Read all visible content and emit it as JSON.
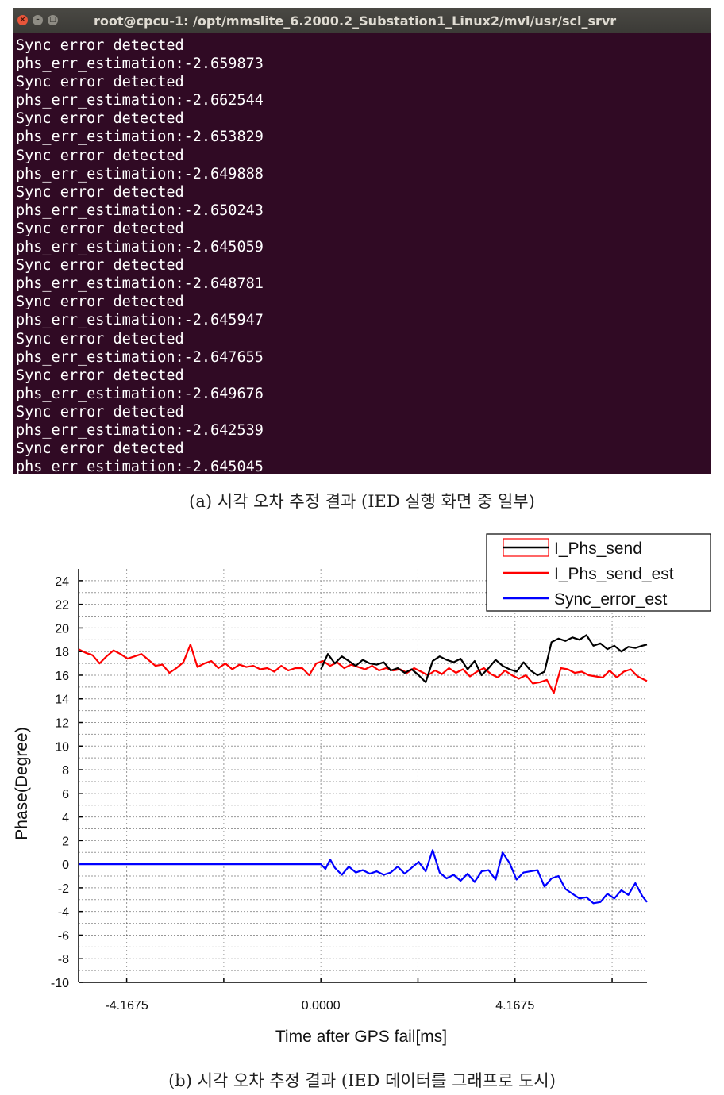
{
  "terminal": {
    "title": "root@cpcu-1: /opt/mmslite_6.2000.2_Substation1_Linux2/mvl/usr/scl_srvr",
    "buttons": {
      "close": "×",
      "minimize": "–",
      "maximize": "□"
    },
    "lines": [
      "Sync error detected",
      "phs_err_estimation:-2.659873",
      "Sync error detected",
      "phs_err_estimation:-2.662544",
      "Sync error detected",
      "phs_err_estimation:-2.653829",
      "Sync error detected",
      "phs_err_estimation:-2.649888",
      "Sync error detected",
      "phs_err_estimation:-2.650243",
      "Sync error detected",
      "phs_err_estimation:-2.645059",
      "Sync error detected",
      "phs_err_estimation:-2.648781",
      "Sync error detected",
      "phs_err_estimation:-2.645947",
      "Sync error detected",
      "phs_err_estimation:-2.647655",
      "Sync error detected",
      "phs_err_estimation:-2.649676",
      "Sync error detected",
      "phs_err_estimation:-2.642539",
      "Sync error detected",
      "phs_err_estimation:-2.645045"
    ],
    "background_color": "#300a24",
    "text_color": "#ffffff"
  },
  "captions": {
    "a": "(a) 시각 오차 추정 결과 (IED 실행 화면 중 일부)",
    "b": "(b) 시각 오차 추정 결과 (IED 데이터를 그래프로 도시)"
  },
  "chart_data": {
    "type": "line",
    "title": "",
    "xlabel": "Time after GPS fail[ms]",
    "ylabel": "Phase(Degree)",
    "xticks": [
      "-4.1675",
      "0.0000",
      "4.1675"
    ],
    "xtick_values": [
      -4.1675,
      0.0,
      4.1675
    ],
    "xlim": [
      -5.2,
      7.0
    ],
    "ylim": [
      -10,
      25
    ],
    "yticks": [
      -10,
      -8,
      -6,
      -4,
      -2,
      0,
      2,
      4,
      6,
      8,
      10,
      12,
      14,
      16,
      18,
      20,
      22,
      24
    ],
    "grid": true,
    "legend_position": "top-right",
    "series": [
      {
        "name": "I_Phs_send",
        "color": "#000000",
        "x": [
          0.0,
          0.15,
          0.3,
          0.45,
          0.6,
          0.75,
          0.9,
          1.05,
          1.2,
          1.35,
          1.5,
          1.65,
          1.8,
          1.95,
          2.1,
          2.25,
          2.4,
          2.55,
          2.7,
          2.85,
          3.0,
          3.15,
          3.3,
          3.45,
          3.6,
          3.75,
          3.9,
          4.05,
          4.2,
          4.35,
          4.5,
          4.65,
          4.8,
          4.95,
          5.1,
          5.25,
          5.4,
          5.55,
          5.7,
          5.85,
          6.0,
          6.15,
          6.3,
          6.45,
          6.6,
          6.75,
          6.9,
          7.0
        ],
        "y": [
          16.5,
          17.8,
          17.0,
          17.6,
          17.2,
          16.8,
          17.3,
          17.0,
          16.9,
          17.1,
          16.4,
          16.6,
          16.2,
          16.5,
          16.0,
          15.4,
          17.2,
          17.6,
          17.3,
          17.1,
          17.4,
          16.5,
          17.2,
          16.0,
          16.6,
          17.3,
          16.8,
          16.5,
          16.3,
          17.1,
          16.4,
          16.0,
          16.3,
          18.8,
          19.1,
          18.9,
          19.2,
          19.0,
          19.4,
          18.5,
          18.7,
          18.2,
          18.5,
          18.0,
          18.4,
          18.3,
          18.5,
          18.6
        ]
      },
      {
        "name": "I_Phs_send_est",
        "color": "#ff0000",
        "x": [
          -5.2,
          -5.05,
          -4.9,
          -4.75,
          -4.6,
          -4.45,
          -4.3,
          -4.15,
          -4.0,
          -3.85,
          -3.7,
          -3.55,
          -3.4,
          -3.25,
          -3.1,
          -2.95,
          -2.8,
          -2.65,
          -2.5,
          -2.35,
          -2.2,
          -2.05,
          -1.9,
          -1.75,
          -1.6,
          -1.45,
          -1.3,
          -1.15,
          -1.0,
          -0.85,
          -0.7,
          -0.55,
          -0.4,
          -0.25,
          -0.1,
          0.05,
          0.2,
          0.35,
          0.5,
          0.65,
          0.8,
          0.95,
          1.1,
          1.25,
          1.4,
          1.55,
          1.7,
          1.85,
          2.0,
          2.15,
          2.3,
          2.45,
          2.6,
          2.75,
          2.9,
          3.05,
          3.2,
          3.35,
          3.5,
          3.65,
          3.8,
          3.95,
          4.1,
          4.25,
          4.4,
          4.55,
          4.7,
          4.85,
          5.0,
          5.15,
          5.3,
          5.45,
          5.6,
          5.75,
          5.9,
          6.05,
          6.2,
          6.35,
          6.5,
          6.65,
          6.8,
          7.0
        ],
        "y": [
          18.2,
          17.9,
          17.7,
          17.0,
          17.6,
          18.1,
          17.8,
          17.4,
          17.6,
          17.8,
          17.3,
          16.8,
          16.9,
          16.2,
          16.6,
          17.1,
          18.6,
          16.7,
          17.0,
          17.2,
          16.6,
          17.0,
          16.5,
          16.9,
          16.7,
          16.8,
          16.5,
          16.6,
          16.3,
          16.8,
          16.4,
          16.6,
          16.6,
          16.0,
          17.0,
          17.2,
          16.8,
          17.1,
          16.6,
          16.9,
          16.7,
          16.5,
          16.8,
          16.4,
          16.6,
          16.4,
          16.5,
          16.2,
          16.6,
          16.3,
          16.0,
          16.4,
          16.1,
          16.6,
          16.2,
          16.5,
          15.9,
          16.3,
          16.6,
          16.1,
          15.8,
          16.4,
          16.0,
          15.7,
          16.0,
          15.3,
          15.4,
          15.6,
          14.5,
          16.6,
          16.5,
          16.2,
          16.3,
          16.0,
          15.9,
          15.8,
          16.4,
          15.8,
          16.3,
          16.5,
          15.9,
          15.5
        ]
      },
      {
        "name": "Sync_error_est",
        "color": "#0000ff",
        "x": [
          -5.2,
          -4.0,
          -3.0,
          -2.0,
          -1.0,
          -0.1,
          0.0,
          0.1,
          0.2,
          0.3,
          0.45,
          0.6,
          0.75,
          0.9,
          1.05,
          1.2,
          1.35,
          1.5,
          1.65,
          1.8,
          1.95,
          2.1,
          2.25,
          2.4,
          2.55,
          2.7,
          2.85,
          3.0,
          3.15,
          3.3,
          3.45,
          3.6,
          3.75,
          3.9,
          4.05,
          4.2,
          4.35,
          4.5,
          4.65,
          4.8,
          4.95,
          5.1,
          5.25,
          5.4,
          5.55,
          5.7,
          5.85,
          6.0,
          6.15,
          6.3,
          6.45,
          6.6,
          6.75,
          6.9,
          7.0
        ],
        "y": [
          0.0,
          0.0,
          0.0,
          0.0,
          0.0,
          0.0,
          0.0,
          -0.4,
          0.4,
          -0.3,
          -0.9,
          -0.2,
          -0.7,
          -0.5,
          -0.8,
          -0.6,
          -0.9,
          -0.7,
          -0.2,
          -0.8,
          -0.3,
          0.2,
          -0.6,
          1.2,
          -0.7,
          -1.2,
          -0.9,
          -1.4,
          -0.8,
          -1.5,
          -0.6,
          -0.5,
          -1.3,
          1.0,
          0.1,
          -1.3,
          -0.7,
          -0.6,
          -0.5,
          -1.9,
          -1.2,
          -1.0,
          -2.1,
          -2.5,
          -2.9,
          -2.8,
          -3.3,
          -3.2,
          -2.5,
          -2.9,
          -2.2,
          -2.6,
          -1.6,
          -2.7,
          -3.2
        ]
      }
    ]
  }
}
